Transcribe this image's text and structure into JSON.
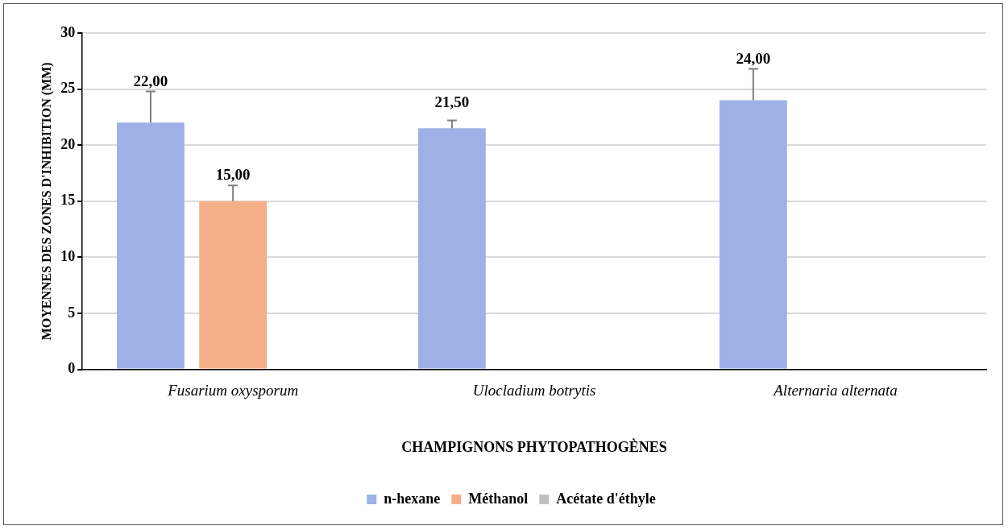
{
  "chart_data": {
    "type": "bar",
    "xlabel": "CHAMPIGNONS PHYTOPATHOGÈNES",
    "ylabel": "MOYENNES DES ZONES D'INHIBITION (MM)",
    "categories": [
      "Fusarium oxysporum",
      "Ulocladium botrytis",
      "Alternaria alternata"
    ],
    "series": [
      {
        "name": "n-hexane",
        "color": "#9eb0e6",
        "values": [
          22,
          21.5,
          24
        ],
        "errors": [
          [
            22,
            24.8
          ],
          [
            21.5,
            22.2
          ],
          [
            24,
            26.8
          ]
        ],
        "value_labels": [
          "22,00",
          "21,50",
          "24,00"
        ]
      },
      {
        "name": "Méthanol",
        "color": "#f6ae88",
        "values": [
          15,
          null,
          null
        ],
        "errors": [
          [
            15,
            16.4
          ],
          null,
          null
        ],
        "value_labels": [
          "15,00",
          null,
          null
        ]
      },
      {
        "name": "Acétate d'éthyle",
        "color": "#c0c0c0",
        "values": [
          null,
          null,
          null
        ]
      }
    ],
    "ylim": [
      0,
      30
    ],
    "yticks": [
      0,
      5,
      10,
      15,
      20,
      25,
      30
    ],
    "grid": "y",
    "legend": "bottom"
  }
}
